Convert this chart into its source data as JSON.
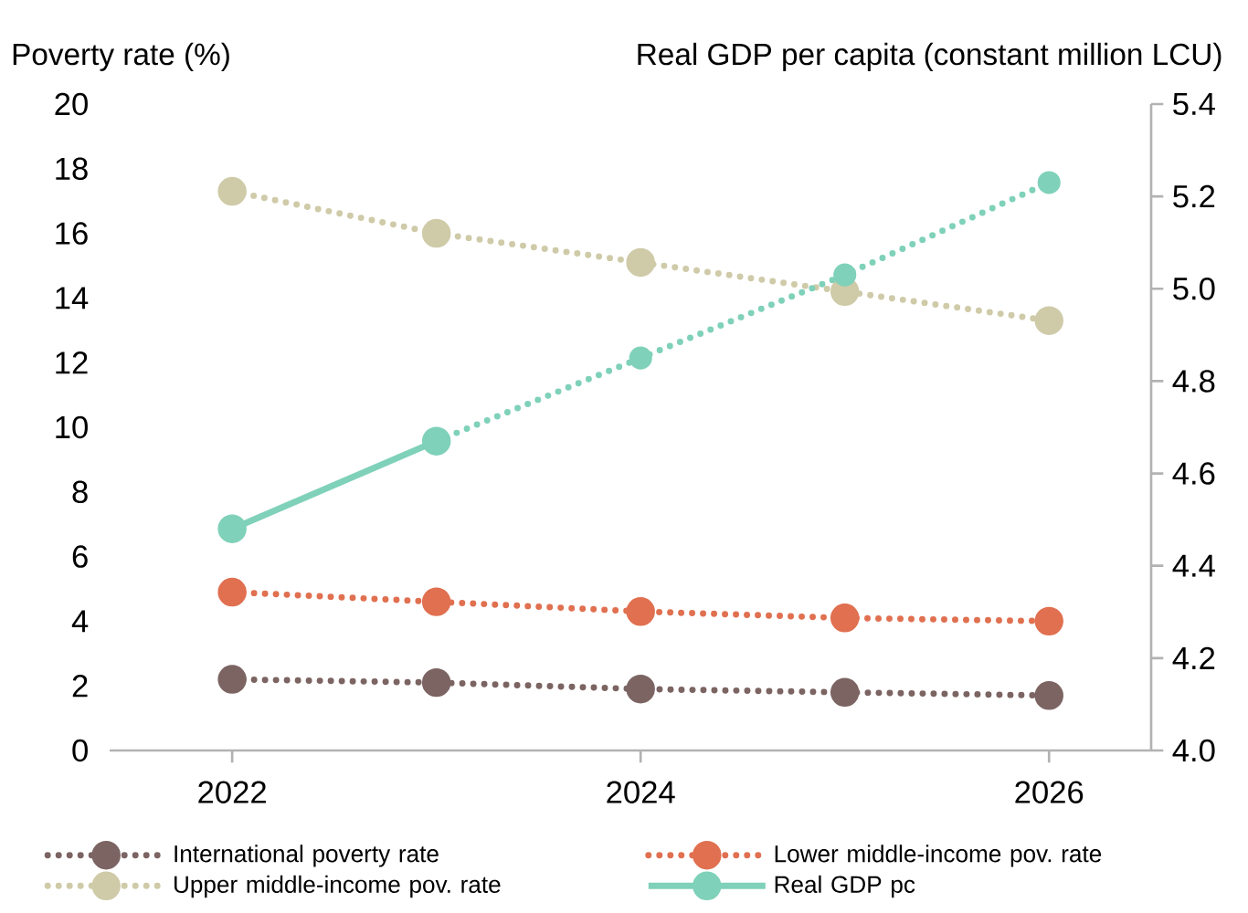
{
  "chart_data": {
    "type": "line",
    "ylabel": "Poverty rate (%)",
    "y2label": "Real GDP per capita (constant million LCU)",
    "x": [
      2022,
      2023,
      2024,
      2025,
      2026
    ],
    "xlim": [
      2021.4,
      2026.5
    ],
    "xticks": [
      2022,
      2024,
      2026
    ],
    "ylim": [
      0,
      20
    ],
    "yticks": [
      0,
      2,
      4,
      6,
      8,
      10,
      12,
      14,
      16,
      18,
      20
    ],
    "y2lim": [
      4.0,
      5.4
    ],
    "y2ticks": [
      {
        "value": 4.0,
        "label": "4.0"
      },
      {
        "value": 4.2,
        "label": "4.2"
      },
      {
        "value": 4.4,
        "label": "4.4"
      },
      {
        "value": 4.6,
        "label": "4.6"
      },
      {
        "value": 4.8,
        "label": "4.8"
      },
      {
        "value": 5.0,
        "label": "5.0"
      },
      {
        "value": 5.2,
        "label": "5.2"
      },
      {
        "value": 5.4,
        "label": "5.4"
      }
    ],
    "marker": "circle",
    "legend": "bottom",
    "grid": false,
    "series": [
      {
        "name": "International poverty rate",
        "color": "#7b6462",
        "line_style": "dotted",
        "values": [
          2.2,
          2.1,
          1.9,
          1.8,
          1.7
        ]
      },
      {
        "name": "Lower middle-income pov. rate",
        "color": "#e07050",
        "line_style": "dotted",
        "values": [
          4.9,
          4.6,
          4.3,
          4.1,
          4.0
        ]
      },
      {
        "name": "Upper middle-income pov. rate",
        "color": "#cfcaa8",
        "line_style": "dotted",
        "values": [
          17.3,
          16.0,
          15.1,
          14.2,
          13.3
        ]
      },
      {
        "name": "Real GDP pc",
        "color": "#7fd1b9",
        "line_style": "solid",
        "axis": "y2",
        "values": [
          4.48,
          4.67,
          null,
          null,
          null
        ]
      },
      {
        "color": "#7fd1b9",
        "line_style": "dotted",
        "axis": "y2",
        "values": [
          null,
          4.67,
          4.85,
          5.03,
          5.23
        ]
      }
    ]
  }
}
